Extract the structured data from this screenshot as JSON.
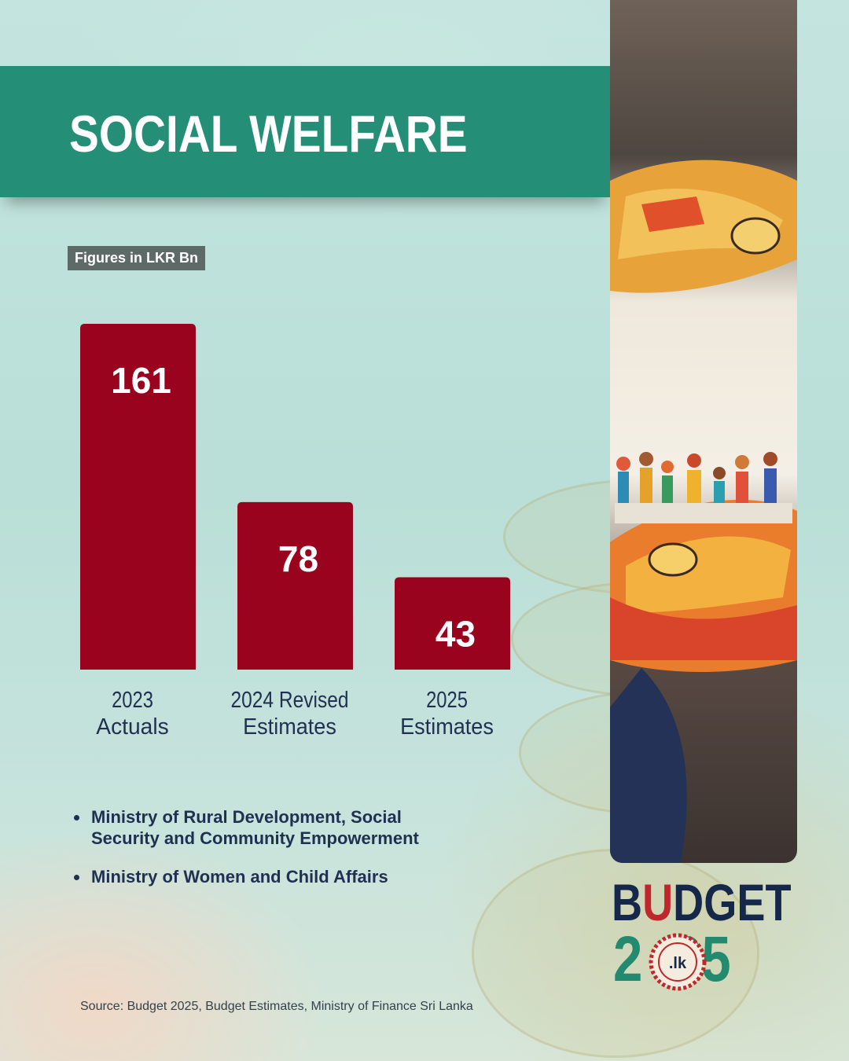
{
  "title": "SOCIAL WELFARE",
  "units_label": "Figures in LKR Bn",
  "chart_data": {
    "type": "bar",
    "categories": [
      "2023 Actuals",
      "2024 Revised Estimates",
      "2025 Estimates"
    ],
    "category_lines": [
      [
        "2023",
        "Actuals"
      ],
      [
        "2024 Revised",
        "Estimates"
      ],
      [
        "2025",
        "Estimates"
      ]
    ],
    "values": [
      161,
      78,
      43
    ],
    "value_labels": [
      "161",
      "78",
      "43"
    ],
    "bar_color": "#9a031e",
    "ylim": [
      0,
      161
    ]
  },
  "ministries": [
    [
      "Ministry of Rural Development, Social",
      "Security and Community Empowerment"
    ],
    [
      "Ministry of Women and Child Affairs"
    ]
  ],
  "source": "Source: Budget 2025, Budget Estimates, Ministry of Finance Sri Lanka",
  "logo": {
    "word": "BUDGET",
    "year": "2025",
    "domain": ".lk",
    "colors": {
      "navy": "#16284a",
      "green": "#23896f",
      "red": "#c0272d"
    }
  },
  "colors": {
    "banner": "#248f76",
    "text_dark": "#1f3050"
  }
}
